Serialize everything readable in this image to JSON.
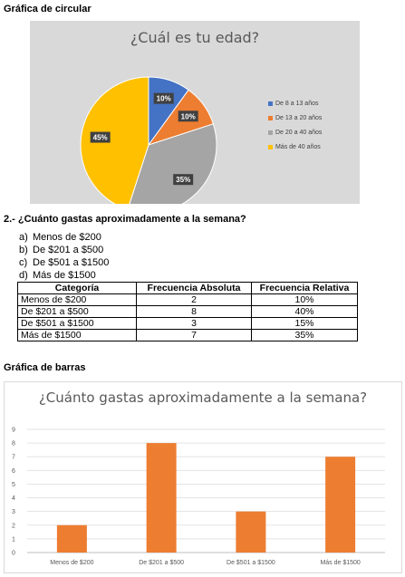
{
  "section_pie": {
    "heading": "Gráfica de circular"
  },
  "pie_chart": {
    "type": "pie",
    "title": "¿Cuál es tu edad?",
    "slices": [
      {
        "name": "De 8 a 13 años",
        "value": 10,
        "label": "10%",
        "color": "#4472c4"
      },
      {
        "name": "De 13 a 20 años",
        "value": 10,
        "label": "10%",
        "color": "#ed7d31"
      },
      {
        "name": "De 20 a 40 años",
        "value": 35,
        "label": "35%",
        "color": "#a5a5a5"
      },
      {
        "name": "Más de 40 años",
        "value": 45,
        "label": "45%",
        "color": "#ffc000"
      }
    ],
    "legend_position": "right"
  },
  "question": {
    "text": "2.- ¿Cuánto gastas aproximadamente a la semana?",
    "options": [
      {
        "marker": "a)",
        "text": "Menos de $200"
      },
      {
        "marker": "b)",
        "text": "De $201 a $500"
      },
      {
        "marker": "c)",
        "text": "De $501 a $1500"
      },
      {
        "marker": "d)",
        "text": "Más de $1500"
      }
    ]
  },
  "table": {
    "headers": [
      "Categoría",
      "Frecuencia Absoluta",
      "Frecuencia Relativa"
    ],
    "rows": [
      [
        "Menos de $200",
        "2",
        "10%"
      ],
      [
        "De $201 a $500",
        "8",
        "40%"
      ],
      [
        "De $501 a $1500",
        "3",
        "15%"
      ],
      [
        "Más de $1500",
        "7",
        "35%"
      ]
    ]
  },
  "section_bar": {
    "heading": "Gráfica de barras"
  },
  "chart_data": {
    "type": "bar",
    "title": "¿Cuánto gastas aproximadamente a la semana?",
    "categories": [
      "Menos de $200",
      "De $201 a $500",
      "De $501 a $1500",
      "Más de $1500"
    ],
    "values": [
      2,
      8,
      3,
      7
    ],
    "ylim": [
      0,
      9
    ],
    "yticks": [
      "0",
      "1",
      "2",
      "3",
      "4",
      "5",
      "6",
      "7",
      "8",
      "9"
    ],
    "grid": true,
    "bar_color": "#ed7d31",
    "xlabel": "",
    "ylabel": ""
  }
}
